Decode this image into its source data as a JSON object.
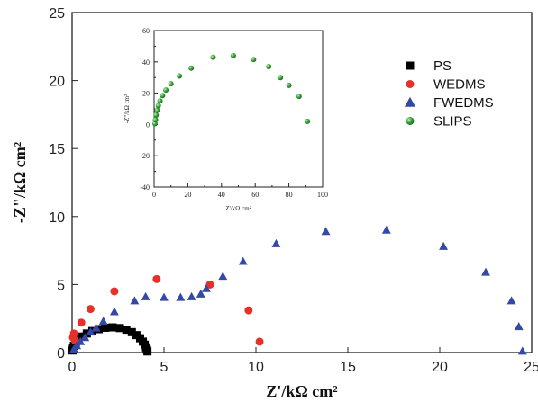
{
  "chart_data": [
    {
      "type": "scatter",
      "xlabel": "Z'/kΩ cm²",
      "ylabel": "-Z\"/kΩ cm²",
      "xlim": [
        0,
        25
      ],
      "ylim": [
        0,
        25
      ],
      "xticks": [
        0,
        5,
        10,
        15,
        20,
        25
      ],
      "yticks": [
        0,
        5,
        10,
        15,
        20,
        25
      ],
      "legend": "top-right",
      "series": [
        {
          "name": "PS",
          "marker": "square",
          "color": "#000000",
          "points": [
            [
              0.02,
              0.15
            ],
            [
              0.05,
              0.3
            ],
            [
              0.1,
              0.5
            ],
            [
              0.2,
              0.72
            ],
            [
              0.35,
              0.95
            ],
            [
              0.55,
              1.18
            ],
            [
              0.8,
              1.4
            ],
            [
              1.1,
              1.58
            ],
            [
              1.45,
              1.72
            ],
            [
              1.8,
              1.82
            ],
            [
              2.2,
              1.85
            ],
            [
              2.6,
              1.8
            ],
            [
              2.95,
              1.68
            ],
            [
              3.25,
              1.5
            ],
            [
              3.5,
              1.28
            ],
            [
              3.7,
              1.05
            ],
            [
              3.85,
              0.8
            ],
            [
              3.95,
              0.58
            ],
            [
              4.02,
              0.38
            ],
            [
              4.07,
              0.2
            ],
            [
              4.1,
              0.08
            ]
          ]
        },
        {
          "name": "WEDMS",
          "marker": "circle",
          "color": "#e8302a",
          "points": [
            [
              0.05,
              1.1
            ],
            [
              0.1,
              1.4
            ],
            [
              0.15,
              0.9
            ],
            [
              0.5,
              2.2
            ],
            [
              1.0,
              3.2
            ],
            [
              2.3,
              4.5
            ],
            [
              4.6,
              5.4
            ],
            [
              7.5,
              5.0
            ],
            [
              9.6,
              3.1
            ],
            [
              10.2,
              0.8
            ]
          ]
        },
        {
          "name": "FWEDMS",
          "marker": "triangle",
          "color": "#3448a8",
          "points": [
            [
              0.1,
              0.25
            ],
            [
              0.25,
              0.5
            ],
            [
              0.45,
              0.8
            ],
            [
              0.7,
              1.1
            ],
            [
              1.0,
              1.5
            ],
            [
              1.3,
              1.8
            ],
            [
              1.7,
              2.3
            ],
            [
              2.3,
              3.0
            ],
            [
              3.4,
              3.8
            ],
            [
              4.0,
              4.1
            ],
            [
              5.0,
              4.05
            ],
            [
              5.9,
              4.05
            ],
            [
              6.5,
              4.1
            ],
            [
              7.0,
              4.3
            ],
            [
              7.3,
              4.7
            ],
            [
              8.2,
              5.6
            ],
            [
              9.3,
              6.7
            ],
            [
              11.1,
              8.0
            ],
            [
              13.8,
              8.9
            ],
            [
              17.1,
              9.0
            ],
            [
              20.2,
              7.8
            ],
            [
              22.5,
              5.9
            ],
            [
              23.9,
              3.8
            ],
            [
              24.3,
              1.9
            ],
            [
              24.5,
              0.1
            ]
          ]
        },
        {
          "name": "SLIPS",
          "marker": "sphere",
          "color": "#3aa53c",
          "points": []
        }
      ]
    },
    {
      "type": "scatter",
      "xlabel": "Z'/kΩ cm²",
      "ylabel": "-Z\"/kΩ cm²",
      "xlim": [
        0,
        100
      ],
      "ylim": [
        -40,
        60
      ],
      "xticks": [
        0,
        20,
        40,
        60,
        80,
        100
      ],
      "yticks": [
        -40,
        -20,
        0,
        20,
        40,
        60
      ],
      "series": [
        {
          "name": "SLIPS",
          "marker": "sphere",
          "color": "#3aa53c",
          "points": [
            [
              0.5,
              0.5
            ],
            [
              0.8,
              3
            ],
            [
              1.2,
              6
            ],
            [
              1.8,
              9
            ],
            [
              2.5,
              12
            ],
            [
              3.5,
              15
            ],
            [
              5,
              18.5
            ],
            [
              7,
              22
            ],
            [
              10,
              26
            ],
            [
              15,
              31
            ],
            [
              22,
              36
            ],
            [
              35,
              43
            ],
            [
              47,
              44
            ],
            [
              59,
              41.5
            ],
            [
              68,
              37
            ],
            [
              75,
              30
            ],
            [
              80,
              25
            ],
            [
              86,
              18
            ],
            [
              91,
              2
            ]
          ]
        }
      ]
    }
  ]
}
